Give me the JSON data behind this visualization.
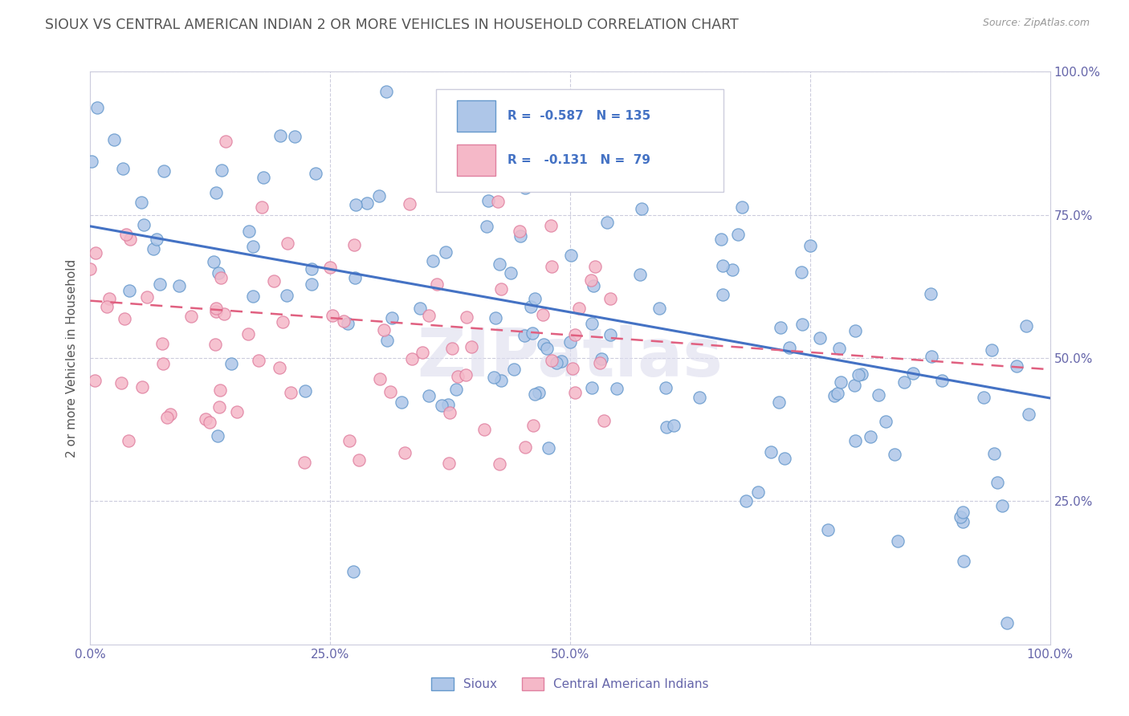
{
  "title": "SIOUX VS CENTRAL AMERICAN INDIAN 2 OR MORE VEHICLES IN HOUSEHOLD CORRELATION CHART",
  "source_text": "Source: ZipAtlas.com",
  "ylabel": "2 or more Vehicles in Household",
  "watermark": "ZIPatlas",
  "legend": {
    "sioux_R": -0.587,
    "sioux_N": 135,
    "ca_R": -0.131,
    "ca_N": 79
  },
  "sioux_color": "#aec6e8",
  "sioux_edge_color": "#6699cc",
  "sioux_line_color": "#4472c4",
  "ca_color": "#f5b8c8",
  "ca_edge_color": "#e080a0",
  "ca_line_color": "#e06080",
  "title_color": "#555555",
  "axis_label_color": "#555555",
  "tick_color": "#6666aa",
  "background_color": "#ffffff",
  "grid_color": "#ccccdd",
  "xlim": [
    0.0,
    1.0
  ],
  "ylim": [
    0.0,
    1.0
  ],
  "xticks": [
    0.0,
    0.25,
    0.5,
    0.75,
    1.0
  ],
  "xticklabels": [
    "0.0%",
    "25.0%",
    "50.0%",
    "",
    "100.0%"
  ],
  "yticks": [
    0.25,
    0.5,
    0.75,
    1.0
  ],
  "yticklabels": [
    "25.0%",
    "50.0%",
    "75.0%",
    "100.0%"
  ],
  "sioux_trend": [
    0.73,
    0.43
  ],
  "ca_trend": [
    0.6,
    0.48
  ]
}
